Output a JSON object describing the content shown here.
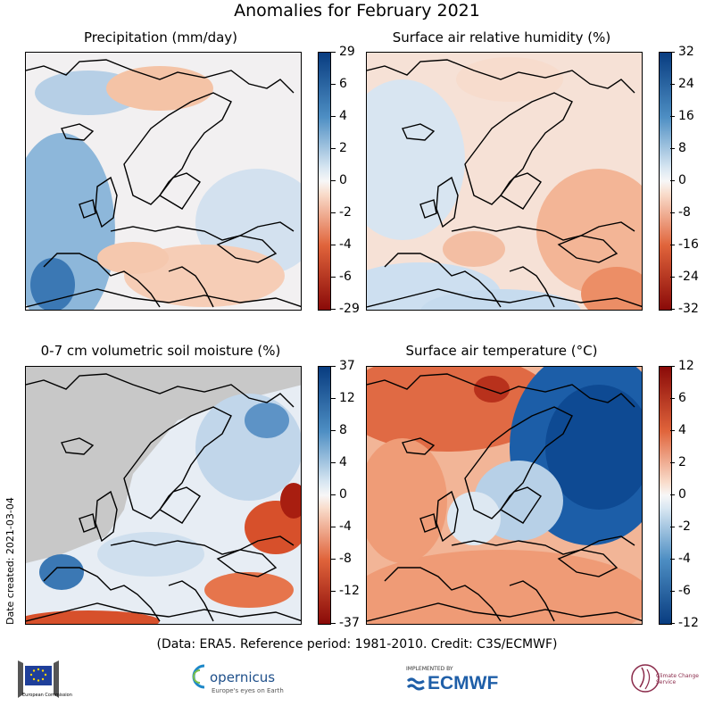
{
  "title": "Anomalies for February 2021",
  "panels": [
    {
      "title": "Precipitation (mm/day)",
      "ticks": [
        "29",
        "6",
        "4",
        "2",
        "0",
        "-2",
        "-4",
        "-6",
        "-29"
      ]
    },
    {
      "title": "Surface air relative humidity (%)",
      "ticks": [
        "32",
        "24",
        "16",
        "8",
        "0",
        "-8",
        "-16",
        "-24",
        "-32"
      ]
    },
    {
      "title": "0-7 cm volumetric soil moisture (%)",
      "ticks": [
        "37",
        "12",
        "8",
        "4",
        "0",
        "-4",
        "-8",
        "-12",
        "-37"
      ]
    },
    {
      "title": "Surface air temperature (°C)",
      "ticks": [
        "12",
        "6",
        "4",
        "2",
        "0",
        "-2",
        "-4",
        "-6",
        "-12"
      ]
    }
  ],
  "credit": "(Data: ERA5.  Reference period: 1981-2010.  Credit: C3S/ECMWF)",
  "date_created": "Date created: 2021-03-04",
  "logos": {
    "eu": "European Commission",
    "copernicus": "opernicus",
    "copernicus_sub": "Europe's eyes on Earth",
    "ecmwf": "ECMWF",
    "ecmwf_sub": "IMPLEMENTED BY",
    "c3s": "Climate Change Service"
  },
  "colors": {
    "blue_dark": "#083c80",
    "red_dark": "#8a0a08",
    "land_gray": "#c8c8c8"
  }
}
